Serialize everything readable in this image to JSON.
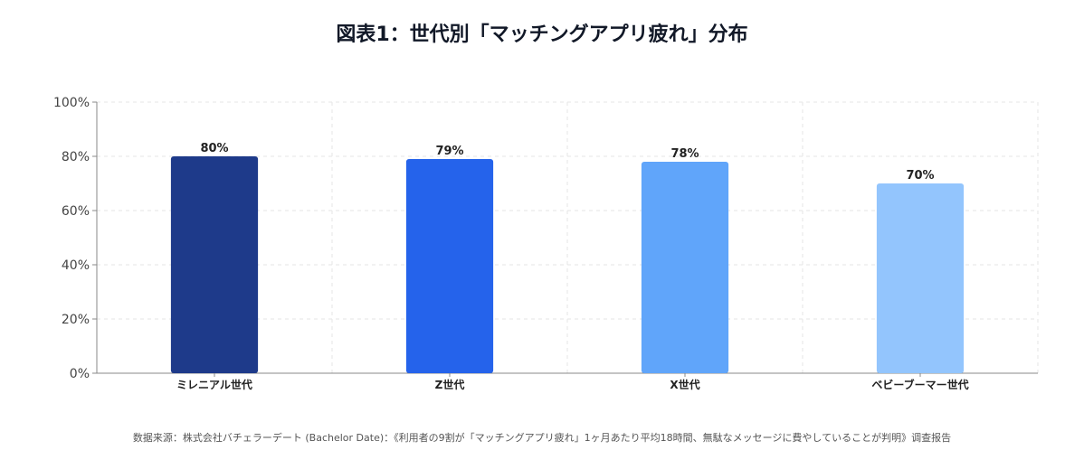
{
  "title": "図表1：世代別「マッチングアプリ疲れ」分布",
  "source": "数据来源：株式会社バチェラーデート (Bachelor Date)：《利用者の9割が「マッチングアプリ疲れ」1ヶ月あたり平均18時間、無駄なメッセージに費やしていることが判明》调查报告",
  "chart_data": {
    "type": "bar",
    "categories": [
      "ミレニアル世代",
      "Z世代",
      "X世代",
      "ベビーブーマー世代"
    ],
    "values": [
      80,
      79,
      78,
      70
    ],
    "value_labels": [
      "80%",
      "79%",
      "78%",
      "70%"
    ],
    "bar_colors": [
      "#1e3a8a",
      "#2563eb",
      "#60a5fa",
      "#93c5fd"
    ],
    "ylim": [
      0,
      100
    ],
    "yticks": [
      0,
      20,
      40,
      60,
      80,
      100
    ],
    "ytick_labels": [
      "0%",
      "20%",
      "40%",
      "60%",
      "80%",
      "100%"
    ],
    "grid": true,
    "xlabel": "",
    "ylabel": ""
  }
}
